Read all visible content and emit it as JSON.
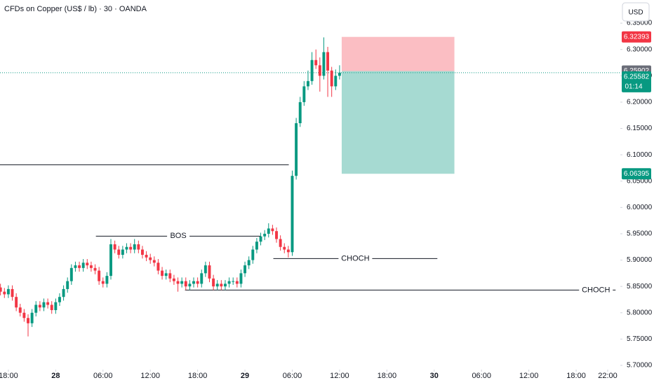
{
  "chart_data": {
    "type": "candlestick",
    "title": "CFDs on Copper (US$ / lb) · 30 · OANDA",
    "currency": "USD",
    "up_color": "#089981",
    "down_color": "#f23645",
    "xlim": [
      16.94,
      95.6
    ],
    "ylim": [
      5.692,
      6.394
    ],
    "xticks": [
      {
        "value": 18,
        "label": "18:00"
      },
      {
        "value": 24,
        "label": "28"
      },
      {
        "value": 30,
        "label": "06:00"
      },
      {
        "value": 36,
        "label": "12:00"
      },
      {
        "value": 42,
        "label": "18:00"
      },
      {
        "value": 48,
        "label": "29"
      },
      {
        "value": 54,
        "label": "06:00"
      },
      {
        "value": 60,
        "label": "12:00"
      },
      {
        "value": 66,
        "label": "18:00"
      },
      {
        "value": 72,
        "label": "30"
      },
      {
        "value": 78,
        "label": "06:00"
      },
      {
        "value": 84,
        "label": "12:00"
      },
      {
        "value": 90,
        "label": "18:00"
      },
      {
        "value": 94,
        "label": "22:00"
      }
    ],
    "yticks": [
      {
        "value": 5.7,
        "label": "5.70000"
      },
      {
        "value": 5.75,
        "label": "5.75000"
      },
      {
        "value": 5.8,
        "label": "5.80000"
      },
      {
        "value": 5.85,
        "label": "5.85000"
      },
      {
        "value": 5.9,
        "label": "5.90000"
      },
      {
        "value": 5.95,
        "label": "5.95000"
      },
      {
        "value": 6.0,
        "label": "6.00000"
      },
      {
        "value": 6.05,
        "label": "6.05000"
      },
      {
        "value": 6.1,
        "label": "6.10000"
      },
      {
        "value": 6.15,
        "label": "6.15000"
      },
      {
        "value": 6.2,
        "label": "6.20000"
      },
      {
        "value": 6.25,
        "label": "6.25000"
      },
      {
        "value": 6.3,
        "label": "6.30000"
      },
      {
        "value": 6.35,
        "label": "6.35000"
      }
    ],
    "x": [
      17,
      17.5,
      18,
      18.5,
      19,
      19.5,
      20,
      20.5,
      21,
      21.5,
      22,
      22.5,
      23,
      23.5,
      24,
      24.5,
      25,
      25.5,
      26,
      26.5,
      27,
      27.5,
      28,
      28.5,
      29,
      29.5,
      30,
      30.5,
      31,
      31.5,
      32,
      32.5,
      33,
      33.5,
      34,
      34.5,
      35,
      35.5,
      36,
      36.5,
      37,
      37.5,
      38,
      38.5,
      39,
      39.5,
      40,
      40.5,
      41,
      41.5,
      42,
      42.5,
      43,
      43.5,
      44,
      44.5,
      45,
      45.5,
      46,
      46.5,
      47,
      47.5,
      48,
      48.5,
      49,
      49.5,
      50,
      50.5,
      51,
      51.5,
      52,
      52.5,
      53,
      53.5,
      54,
      54.5,
      55,
      55.5,
      56,
      56.5,
      57,
      57.5,
      58,
      58.5,
      59,
      59.5,
      60
    ],
    "open": [
      5.848,
      5.84,
      5.835,
      5.845,
      5.83,
      5.81,
      5.8,
      5.79,
      5.78,
      5.8,
      5.815,
      5.81,
      5.82,
      5.815,
      5.805,
      5.82,
      5.83,
      5.845,
      5.86,
      5.885,
      5.89,
      5.885,
      5.895,
      5.89,
      5.885,
      5.88,
      5.86,
      5.855,
      5.87,
      5.93,
      5.92,
      5.91,
      5.92,
      5.925,
      5.92,
      5.93,
      5.92,
      5.91,
      5.905,
      5.9,
      5.895,
      5.88,
      5.87,
      5.875,
      5.865,
      5.86,
      5.855,
      5.86,
      5.85,
      5.855,
      5.86,
      5.855,
      5.875,
      5.89,
      5.865,
      5.85,
      5.855,
      5.85,
      5.855,
      5.86,
      5.86,
      5.855,
      5.875,
      5.89,
      5.9,
      5.92,
      5.935,
      5.945,
      5.95,
      5.96,
      5.955,
      5.94,
      5.925,
      5.92,
      5.915,
      6.06,
      6.16,
      6.2,
      6.23,
      6.24,
      6.28,
      6.27,
      6.25,
      6.295,
      6.26,
      6.23,
      6.25
    ],
    "high": [
      5.855,
      5.847,
      5.852,
      5.852,
      5.837,
      5.817,
      5.807,
      5.797,
      5.807,
      5.822,
      5.822,
      5.827,
      5.827,
      5.822,
      5.827,
      5.837,
      5.852,
      5.867,
      5.892,
      5.897,
      5.897,
      5.902,
      5.902,
      5.897,
      5.892,
      5.887,
      5.867,
      5.877,
      5.94,
      5.937,
      5.927,
      5.927,
      5.932,
      5.932,
      5.94,
      5.937,
      5.927,
      5.917,
      5.912,
      5.907,
      5.902,
      5.887,
      5.882,
      5.882,
      5.872,
      5.867,
      5.867,
      5.867,
      5.862,
      5.867,
      5.867,
      5.882,
      5.897,
      5.897,
      5.872,
      5.862,
      5.862,
      5.862,
      5.867,
      5.867,
      5.867,
      5.882,
      5.897,
      5.907,
      5.927,
      5.942,
      5.952,
      5.957,
      5.97,
      5.967,
      5.962,
      5.947,
      5.932,
      5.927,
      6.07,
      6.17,
      6.21,
      6.24,
      6.26,
      6.295,
      6.3,
      6.285,
      6.323,
      6.305,
      6.267,
      6.262,
      6.27
    ],
    "low": [
      5.833,
      5.828,
      5.828,
      5.823,
      5.803,
      5.793,
      5.783,
      5.755,
      5.773,
      5.793,
      5.803,
      5.803,
      5.808,
      5.798,
      5.798,
      5.813,
      5.823,
      5.838,
      5.853,
      5.878,
      5.878,
      5.878,
      5.883,
      5.878,
      5.873,
      5.853,
      5.848,
      5.848,
      5.863,
      5.913,
      5.903,
      5.903,
      5.913,
      5.913,
      5.913,
      5.913,
      5.903,
      5.898,
      5.893,
      5.888,
      5.873,
      5.863,
      5.863,
      5.858,
      5.853,
      5.84,
      5.848,
      5.843,
      5.843,
      5.848,
      5.848,
      5.848,
      5.868,
      5.858,
      5.843,
      5.843,
      5.843,
      5.843,
      5.848,
      5.853,
      5.848,
      5.848,
      5.868,
      5.883,
      5.893,
      5.913,
      5.928,
      5.938,
      5.943,
      5.948,
      5.933,
      5.918,
      5.913,
      5.905,
      5.908,
      6.053,
      6.153,
      6.193,
      6.223,
      6.233,
      6.263,
      6.22,
      6.243,
      6.21,
      6.21,
      6.223,
      6.243
    ],
    "close": [
      5.84,
      5.835,
      5.845,
      5.83,
      5.81,
      5.8,
      5.79,
      5.78,
      5.8,
      5.815,
      5.81,
      5.82,
      5.815,
      5.805,
      5.82,
      5.83,
      5.845,
      5.86,
      5.885,
      5.89,
      5.885,
      5.895,
      5.89,
      5.885,
      5.88,
      5.86,
      5.855,
      5.87,
      5.93,
      5.92,
      5.91,
      5.92,
      5.925,
      5.92,
      5.93,
      5.92,
      5.91,
      5.905,
      5.9,
      5.895,
      5.88,
      5.87,
      5.875,
      5.865,
      5.86,
      5.855,
      5.86,
      5.85,
      5.855,
      5.86,
      5.855,
      5.875,
      5.89,
      5.865,
      5.85,
      5.855,
      5.85,
      5.855,
      5.86,
      5.86,
      5.855,
      5.875,
      5.89,
      5.9,
      5.92,
      5.935,
      5.945,
      5.95,
      5.96,
      5.955,
      5.94,
      5.925,
      5.92,
      5.915,
      6.06,
      6.16,
      6.2,
      6.23,
      6.24,
      6.28,
      6.27,
      6.25,
      6.295,
      6.26,
      6.23,
      6.25,
      6.256
    ],
    "lines": [
      {
        "price": 6.0811,
        "x": [
          16.94,
          53.56
        ]
      },
      {
        "price": 5.9455,
        "x": [
          29.1,
          50.0
        ],
        "label": "BOS"
      },
      {
        "price": 5.9029,
        "x": [
          51.6,
          72.4
        ],
        "label": "CHOCH"
      },
      {
        "price": 5.8431,
        "x": [
          40.4,
          95.0
        ],
        "label": "CHOCH"
      }
    ],
    "position": {
      "stop": 6.32393,
      "entry": 6.25902,
      "target": 6.06395,
      "x": [
        60.27,
        74.56
      ]
    },
    "last_price": 6.25582,
    "countdown": "01:14"
  }
}
